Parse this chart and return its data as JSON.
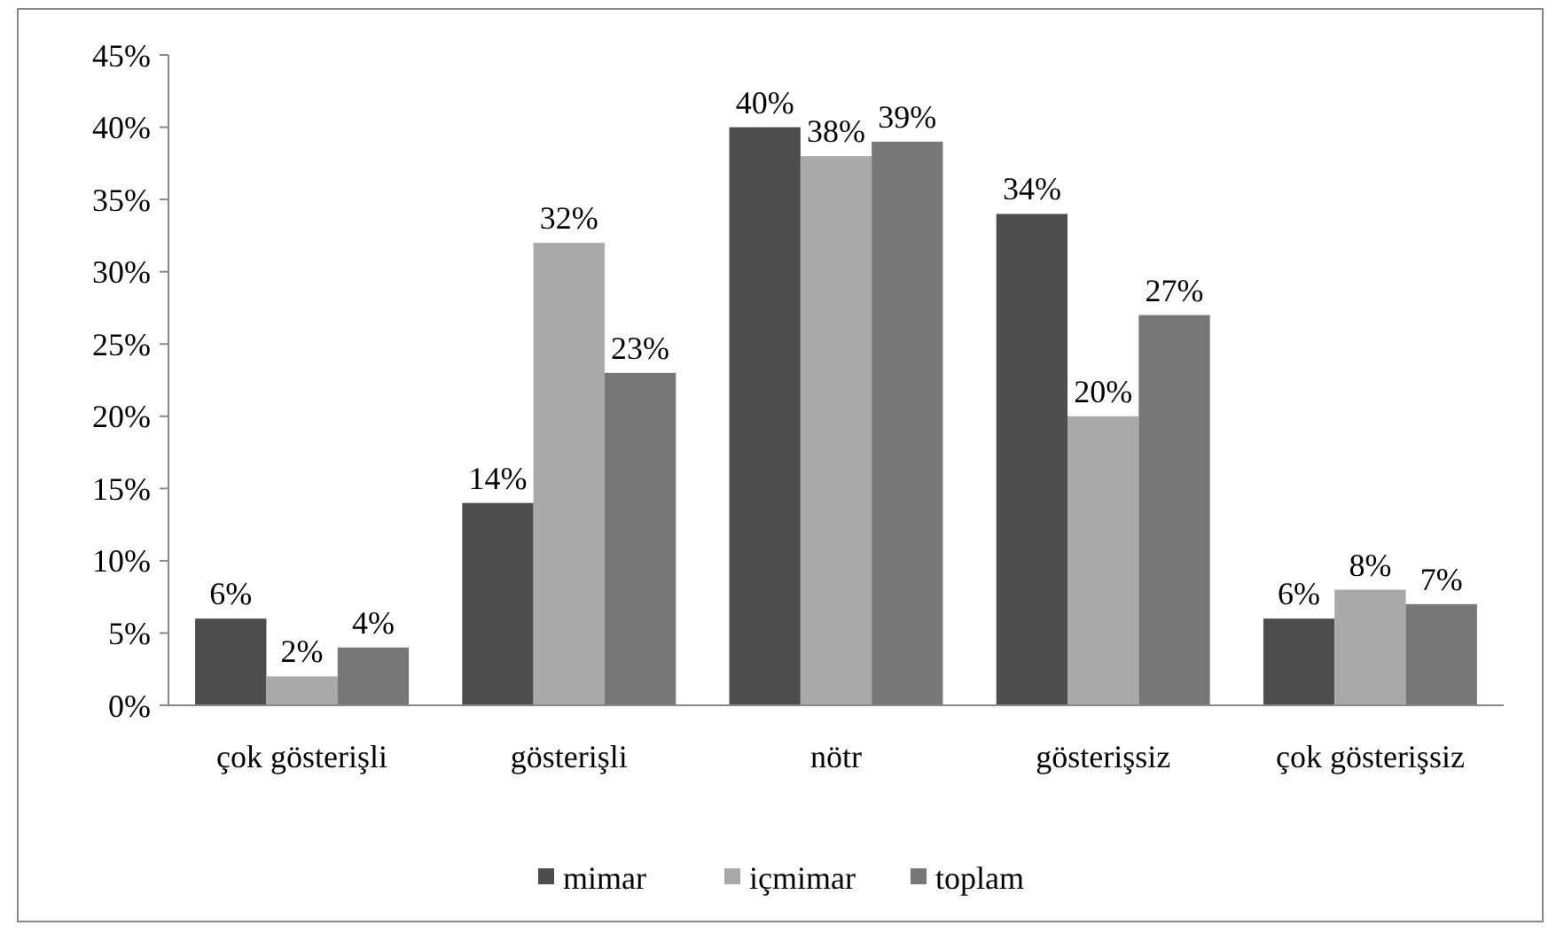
{
  "chart_data": {
    "type": "bar",
    "categories": [
      "çok gösterişli",
      "gösterişli",
      "nötr",
      "gösterişsiz",
      "çok gösterişsiz"
    ],
    "series": [
      {
        "name": "mimar",
        "color": "#4d4d4d",
        "values": [
          6,
          14,
          40,
          34,
          6
        ],
        "value_labels": [
          "6%",
          "14%",
          "40%",
          "34%",
          "6%"
        ]
      },
      {
        "name": "içmimar",
        "color": "#a9a9a9",
        "values": [
          2,
          32,
          38,
          20,
          8
        ],
        "value_labels": [
          "2%",
          "32%",
          "38%",
          "20%",
          "8%"
        ]
      },
      {
        "name": "toplam",
        "color": "#777777",
        "values": [
          4,
          23,
          39,
          27,
          7
        ],
        "value_labels": [
          "4%",
          "23%",
          "39%",
          "27%",
          "7%"
        ]
      }
    ],
    "ylim": [
      0,
      45
    ],
    "yticks": [
      {
        "value": 0,
        "label": "0%"
      },
      {
        "value": 5,
        "label": "5%"
      },
      {
        "value": 10,
        "label": "10%"
      },
      {
        "value": 15,
        "label": "15%"
      },
      {
        "value": 20,
        "label": "20%"
      },
      {
        "value": 25,
        "label": "25%"
      },
      {
        "value": 30,
        "label": "30%"
      },
      {
        "value": 35,
        "label": "35%"
      },
      {
        "value": 40,
        "label": "40%"
      },
      {
        "value": 45,
        "label": "45%"
      }
    ],
    "grid": false,
    "legend": "bottom"
  }
}
